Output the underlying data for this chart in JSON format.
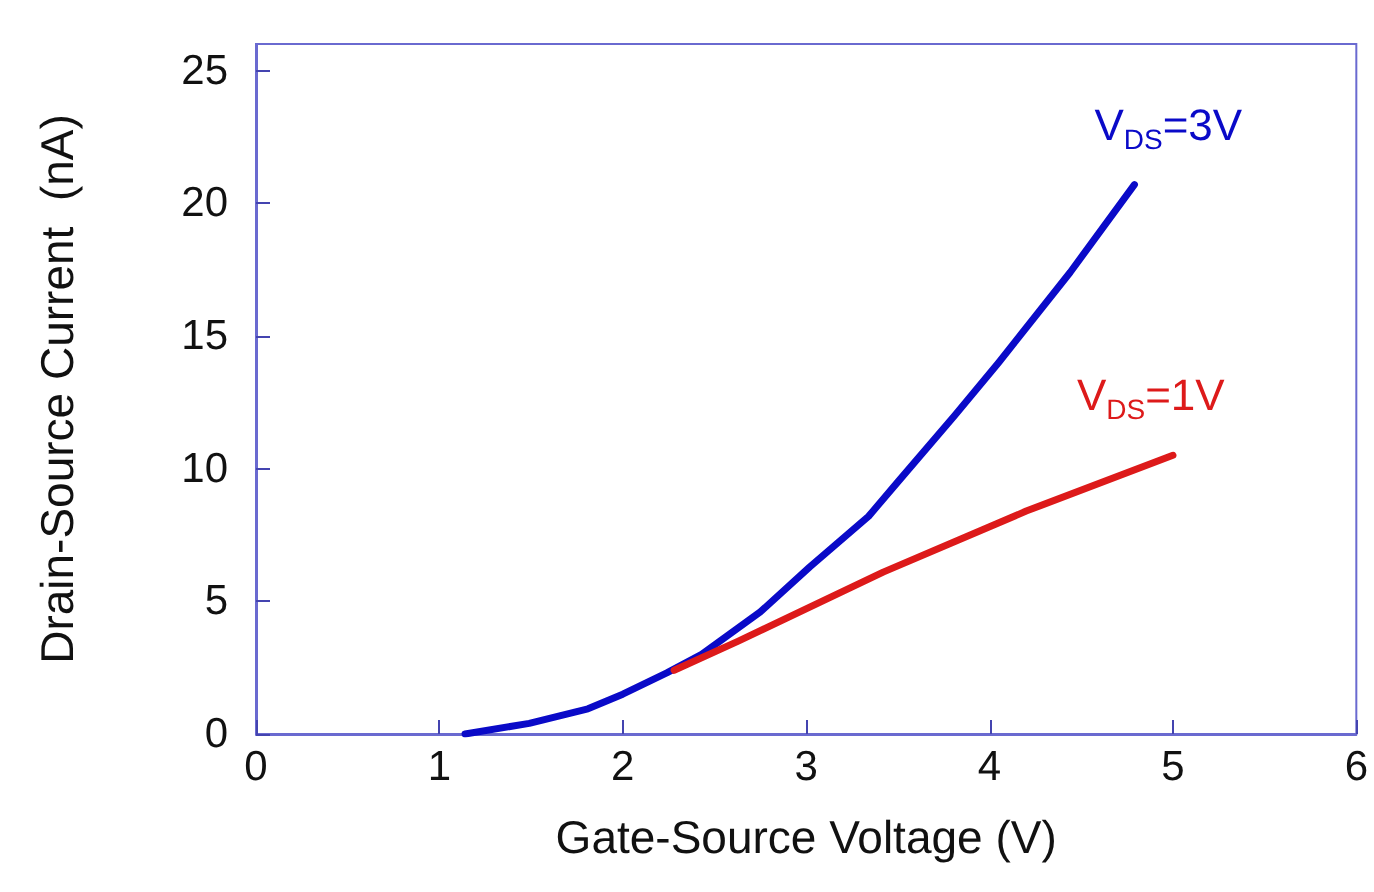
{
  "chart_data": {
    "type": "line",
    "xlabel": "Gate-Source Voltage (V)",
    "ylabel": "Drain-Source Current  (nA)",
    "xlim": [
      0,
      6
    ],
    "xticks": [
      0,
      1,
      2,
      3,
      4,
      5,
      6
    ],
    "ylim": [
      0,
      26
    ],
    "yticks": [
      0,
      5,
      10,
      15,
      20,
      25
    ],
    "grid": false,
    "legend": false,
    "marker": "none",
    "line_style": "solid",
    "series": [
      {
        "name": "V$_{DS}$=3V",
        "color": "#0a0ac8",
        "x": [
          1.14,
          1.49,
          1.81,
          2.0,
          2.24,
          2.43,
          2.75,
          3.02,
          3.34,
          3.5,
          3.81,
          4.05,
          4.44,
          4.79
        ],
        "values": [
          0,
          0.4,
          0.95,
          1.5,
          2.3,
          3.0,
          4.6,
          6.3,
          8.2,
          9.5,
          12.0,
          14.0,
          17.4,
          20.7
        ]
      },
      {
        "name": "V$_{DS}$=1V",
        "color": "#dd1a1a",
        "x": [
          2.28,
          2.63,
          3.42,
          4.2,
          5.0
        ],
        "values": [
          2.4,
          3.5,
          6.1,
          8.4,
          10.5
        ]
      }
    ]
  }
}
